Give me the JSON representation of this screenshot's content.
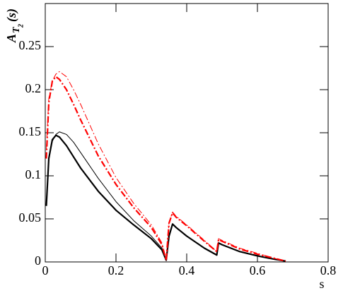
{
  "chart_data": {
    "type": "line",
    "xlabel": "s",
    "ylabel": {
      "main": "A",
      "sub": "T",
      "subsub": "2",
      "arg": "(s)"
    },
    "x": [
      0.003,
      0.01,
      0.02,
      0.03,
      0.04,
      0.06,
      0.08,
      0.1,
      0.15,
      0.2,
      0.25,
      0.3,
      0.33,
      0.342,
      0.35,
      0.36,
      0.37,
      0.4,
      0.45,
      0.485,
      0.49,
      0.5,
      0.55,
      0.6,
      0.65,
      0.68
    ],
    "series": [
      {
        "color": "#000000",
        "values": [
          0.065,
          0.12,
          0.142,
          0.147,
          0.145,
          0.135,
          0.122,
          0.109,
          0.082,
          0.06,
          0.043,
          0.027,
          0.014,
          0.002,
          0.03,
          0.044,
          0.04,
          0.03,
          0.016,
          0.008,
          0.022,
          0.02,
          0.012,
          0.007,
          0.003,
          0.001
        ]
      },
      {
        "color": "#000000",
        "values": [
          0.07,
          0.12,
          0.14,
          0.148,
          0.151,
          0.148,
          0.139,
          0.127,
          0.097,
          0.07,
          0.048,
          0.03,
          0.016,
          0.002,
          0.03,
          0.044,
          0.04,
          0.03,
          0.016,
          0.008,
          0.022,
          0.02,
          0.012,
          0.007,
          0.003,
          0.001
        ]
      },
      {
        "color": "#ff0000",
        "values": [
          0.12,
          0.185,
          0.21,
          0.215,
          0.212,
          0.2,
          0.183,
          0.165,
          0.123,
          0.09,
          0.063,
          0.04,
          0.02,
          0.002,
          0.045,
          0.057,
          0.052,
          0.042,
          0.024,
          0.012,
          0.026,
          0.024,
          0.015,
          0.009,
          0.004,
          0.001
        ]
      },
      {
        "color": "#ff0000",
        "values": [
          0.13,
          0.19,
          0.21,
          0.218,
          0.221,
          0.215,
          0.2,
          0.183,
          0.137,
          0.098,
          0.068,
          0.043,
          0.022,
          0.002,
          0.046,
          0.058,
          0.053,
          0.043,
          0.025,
          0.012,
          0.027,
          0.025,
          0.016,
          0.01,
          0.004,
          0.001
        ]
      }
    ],
    "xlim": [
      0,
      0.8
    ],
    "xticks": [
      0,
      0.2,
      0.4,
      0.6,
      0.8
    ],
    "ylim": [
      0,
      0.3
    ],
    "yticks": [
      0,
      0.05,
      0.1,
      0.15,
      0.2,
      0.25
    ]
  }
}
